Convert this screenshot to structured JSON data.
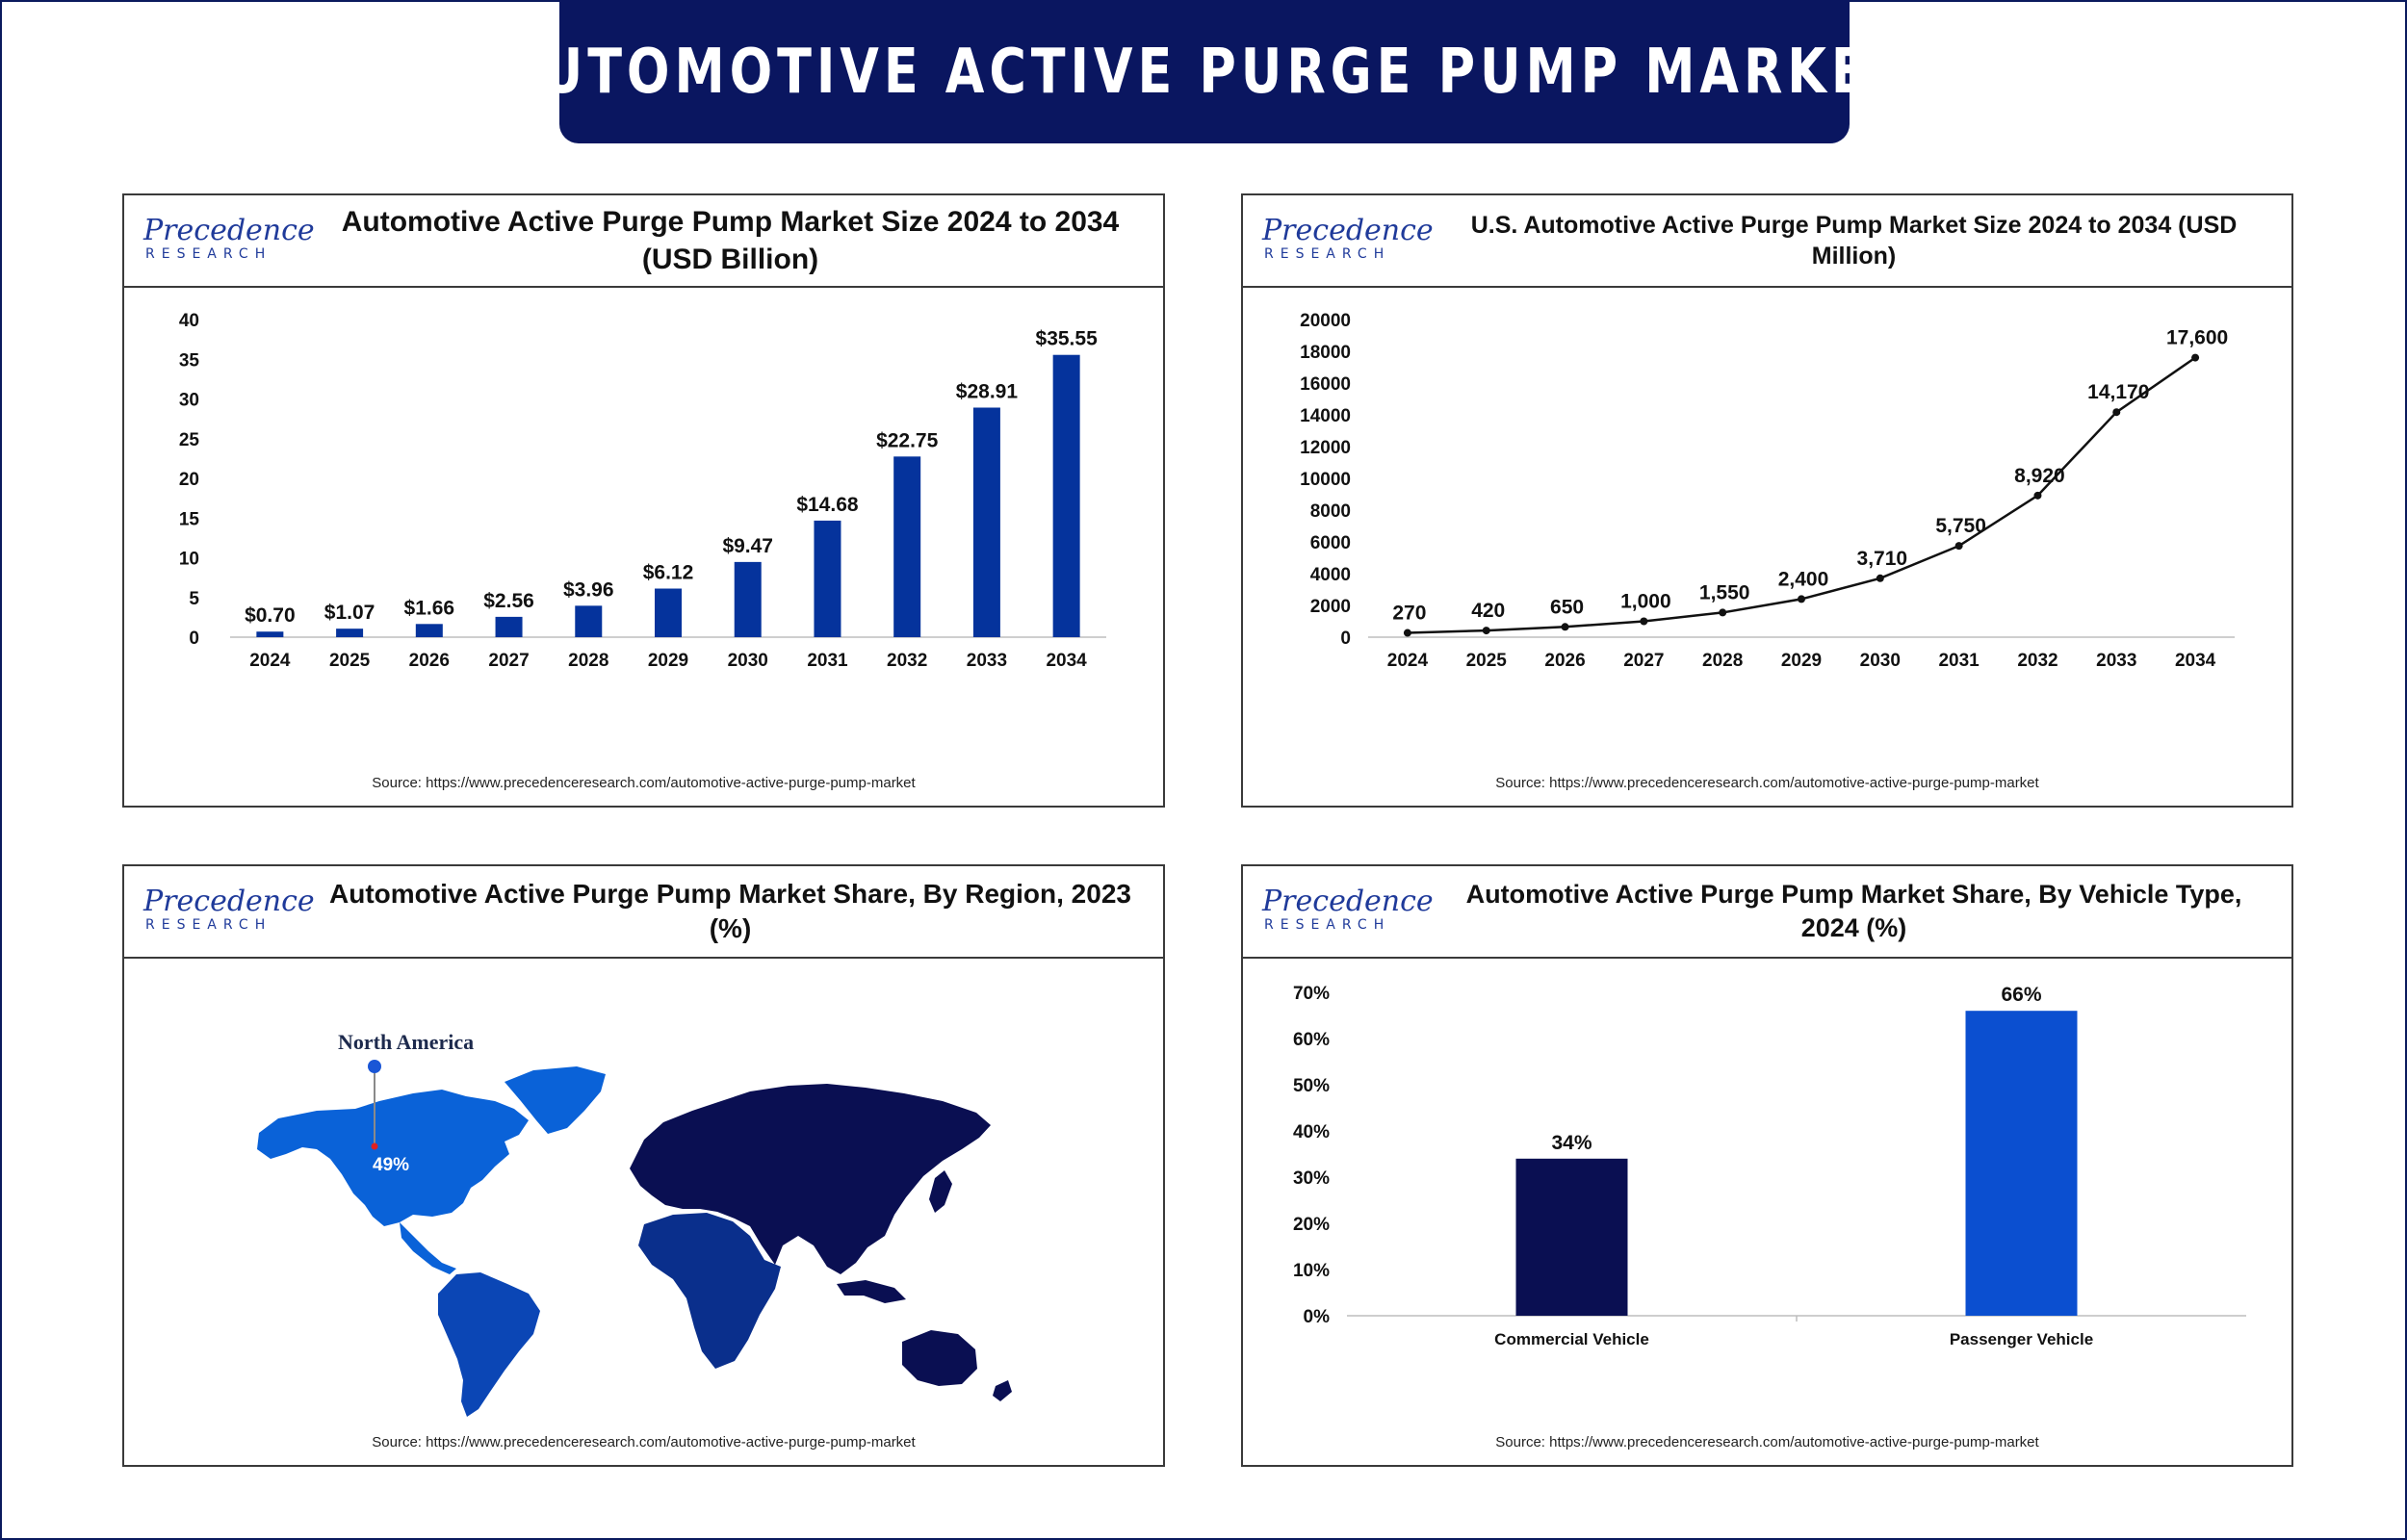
{
  "banner": {
    "title": "AUTOMOTIVE ACTIVE PURGE PUMP MARKET"
  },
  "logo": {
    "top": "Precedence",
    "bottom": "RESEARCH"
  },
  "colors": {
    "navy": "#0a1660",
    "bar_blue": "#05339c",
    "bright_blue": "#0b4fd0",
    "map_na": "#0a62d8",
    "map_latam": "#0b46b5",
    "map_africa": "#0a2f8c",
    "map_dark": "#0a0f52"
  },
  "panels": {
    "market_size": {
      "title_line1": "Automotive Active Purge Pump Market Size 2024 to 2034",
      "title_line2": "(USD Billion)",
      "source": "Source: https://www.precedenceresearch.com/automotive-active-purge-pump-market"
    },
    "us_market": {
      "title": "U.S. Automotive Active Purge Pump Market Size 2024 to 2034 (USD Million)",
      "source": "Source: https://www.precedenceresearch.com/automotive-active-purge-pump-market"
    },
    "region": {
      "title": "Automotive Active Purge Pump Market Share, By Region, 2023 (%)",
      "region_label": "North America",
      "share_label": "49%",
      "source": "Source: https://www.precedenceresearch.com/automotive-active-purge-pump-market"
    },
    "vehicle": {
      "title_line1": "Automotive Active Purge Pump Market Share, By Vehicle Type,",
      "title_line2": "2024 (%)",
      "source": "Source: https://www.precedenceresearch.com/automotive-active-purge-pump-market"
    }
  },
  "chart_data": [
    {
      "type": "bar",
      "title": "Automotive Active Purge Pump Market Size 2024 to 2034 (USD Billion)",
      "categories": [
        "2024",
        "2025",
        "2026",
        "2027",
        "2028",
        "2029",
        "2030",
        "2031",
        "2032",
        "2033",
        "2034"
      ],
      "values": [
        0.7,
        1.07,
        1.66,
        2.56,
        3.96,
        6.12,
        9.47,
        14.68,
        22.75,
        28.91,
        35.55
      ],
      "data_labels": [
        "$0.70",
        "$1.07",
        "$1.66",
        "$2.56",
        "$3.96",
        "$6.12",
        "$9.47",
        "$14.68",
        "$22.75",
        "$28.91",
        "$35.55"
      ],
      "yticks": [
        "0",
        "5",
        "10",
        "15",
        "20",
        "25",
        "30",
        "35",
        "40"
      ],
      "ylim": [
        0,
        40
      ],
      "grid": false
    },
    {
      "type": "line",
      "title": "U.S. Automotive Active Purge Pump Market Size 2024 to 2034 (USD Million)",
      "categories": [
        "2024",
        "2025",
        "2026",
        "2027",
        "2028",
        "2029",
        "2030",
        "2031",
        "2032",
        "2033",
        "2034"
      ],
      "values": [
        270,
        420,
        650,
        1000,
        1550,
        2400,
        3710,
        5750,
        8920,
        14170,
        17600
      ],
      "data_labels": [
        "270",
        "420",
        "650",
        "1,000",
        "1,550",
        "2,400",
        "3,710",
        "5,750",
        "8,920",
        "14,170",
        "17,600"
      ],
      "yticks": [
        "0",
        "2000",
        "4000",
        "6000",
        "8000",
        "10000",
        "12000",
        "14000",
        "16000",
        "18000",
        "20000"
      ],
      "ylim": [
        0,
        20000
      ],
      "grid": false
    },
    {
      "type": "bar",
      "title": "Automotive Active Purge Pump Market Share, By Vehicle Type, 2024 (%)",
      "categories": [
        "Commercial Vehicle",
        "Passenger Vehicle"
      ],
      "values": [
        34,
        66
      ],
      "data_labels": [
        "34%",
        "66%"
      ],
      "yticks": [
        "0%",
        "10%",
        "20%",
        "30%",
        "40%",
        "50%",
        "60%",
        "70%"
      ],
      "ylim": [
        0,
        70
      ],
      "grid": false
    }
  ]
}
